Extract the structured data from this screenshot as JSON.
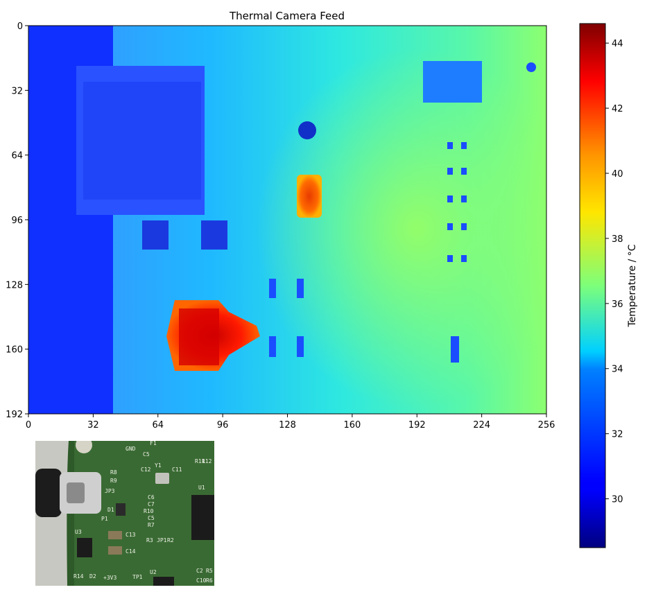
{
  "chart_data": {
    "type": "heatmap",
    "title": "Thermal Camera Feed",
    "xlabel": "",
    "ylabel": "",
    "xlim": [
      0,
      256
    ],
    "ylim": [
      192,
      0
    ],
    "x_ticks": [
      "0",
      "32",
      "64",
      "96",
      "128",
      "160",
      "192",
      "224",
      "256"
    ],
    "y_ticks": [
      "0",
      "32",
      "64",
      "96",
      "128",
      "160",
      "192"
    ],
    "colorbar": {
      "label": "Temperature / °C",
      "min": 28.5,
      "max": 44.6,
      "ticks": [
        "30",
        "32",
        "34",
        "36",
        "38",
        "40",
        "42",
        "44"
      ],
      "colormap": "jet"
    },
    "grid": false,
    "background_gradient": {
      "left_temp": 30.5,
      "right_temp": 37.0,
      "board_edge_x": 42
    },
    "hot_spots": [
      {
        "name": "component-near-(75,150)",
        "center": [
          80,
          150
        ],
        "peak_temp": 43.5
      },
      {
        "name": "component-near-(137,84)",
        "center": [
          138,
          84
        ],
        "peak_temp": 41.5
      }
    ]
  },
  "inset_photo": {
    "labels": [
      "GND",
      "F1",
      "C5",
      "R8",
      "R9",
      "JP3",
      "P1",
      "D1",
      "U3",
      "C13",
      "C14",
      "R14",
      "D2",
      "+3V3",
      "TP1",
      "U2",
      "C12",
      "Y1",
      "C11",
      "R11",
      "R12",
      "C6",
      "C7",
      "R10",
      "C5",
      "R7",
      "R3",
      "JP1",
      "R2",
      "C2",
      "C10",
      "R5",
      "R6",
      "U1"
    ]
  }
}
